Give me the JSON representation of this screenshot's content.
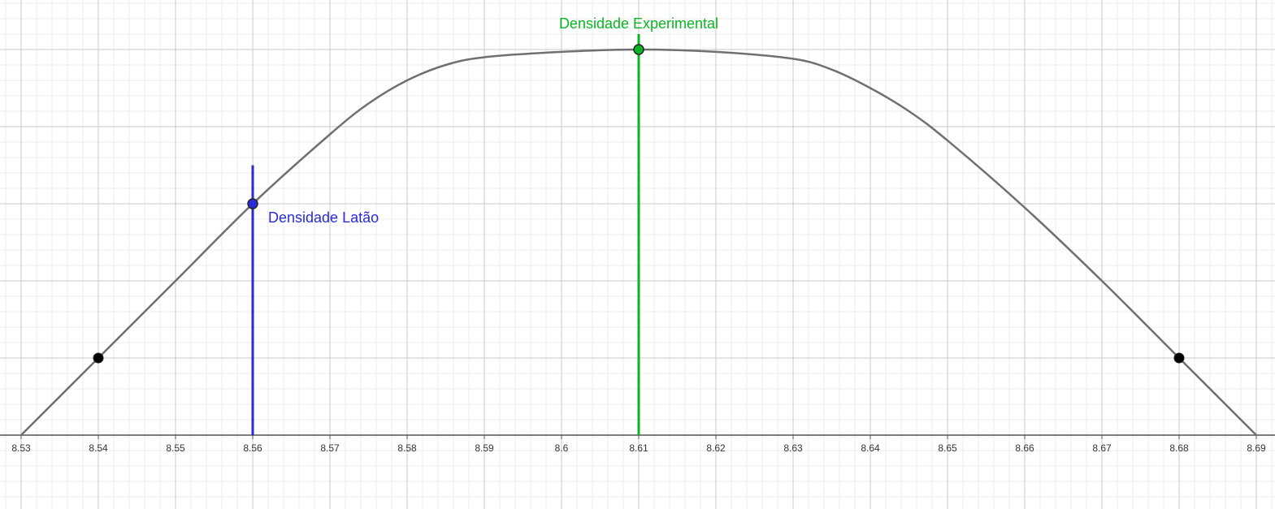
{
  "chart_data": {
    "type": "line",
    "title": "",
    "xlabel": "",
    "ylabel": "",
    "xlim": [
      8.53,
      8.69
    ],
    "ylim": [
      -1,
      5.5
    ],
    "grid": true,
    "x_ticks": [
      8.53,
      8.54,
      8.55,
      8.56,
      8.57,
      8.58,
      8.59,
      8.6,
      8.61,
      8.62,
      8.63,
      8.64,
      8.65,
      8.66,
      8.67,
      8.68,
      8.69
    ],
    "x_tick_labels": [
      "8.53",
      "8.54",
      "8.55",
      "8.56",
      "8.57",
      "8.58",
      "8.59",
      "8.6",
      "8.61",
      "8.62",
      "8.63",
      "8.64",
      "8.65",
      "8.66",
      "8.67",
      "8.68",
      "8.69"
    ],
    "curve": {
      "x": [
        8.53,
        8.54,
        8.55,
        8.56,
        8.57,
        8.575,
        8.58,
        8.585,
        8.59,
        8.6,
        8.61,
        8.62,
        8.63,
        8.635,
        8.64,
        8.645,
        8.65,
        8.66,
        8.67,
        8.68,
        8.69
      ],
      "y": [
        0,
        1,
        2,
        3,
        3.9,
        4.3,
        4.6,
        4.8,
        4.9,
        4.97,
        5,
        4.97,
        4.88,
        4.74,
        4.5,
        4.2,
        3.82,
        2.95,
        2,
        1,
        0
      ],
      "color": "#707070"
    },
    "points": [
      {
        "x": 8.54,
        "y": 1,
        "color": "#000000"
      },
      {
        "x": 8.68,
        "y": 1,
        "color": "#000000"
      }
    ],
    "markers": [
      {
        "label": "Densidade Latão",
        "x": 8.56,
        "y": 3,
        "line_top": 3.5,
        "color": "#2a2bd6",
        "label_position": "right-below"
      },
      {
        "label": "Densidade Experimental",
        "x": 8.61,
        "y": 5,
        "line_top": 5.2,
        "color": "#0ab523",
        "label_position": "above"
      }
    ],
    "colors": {
      "axis": "#555555",
      "grid_major": "#c8c8c8",
      "grid_minor": "#ececec"
    }
  }
}
